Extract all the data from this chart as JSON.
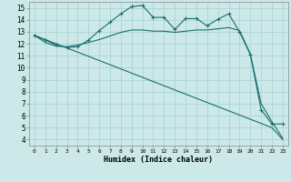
{
  "title": "",
  "xlabel": "Humidex (Indice chaleur)",
  "bg_color": "#cce8e8",
  "grid_color": "#aad4d4",
  "line_color": "#1a6e6e",
  "xlim": [
    -0.5,
    23.5
  ],
  "ylim": [
    3.5,
    15.5
  ],
  "xticks": [
    0,
    1,
    2,
    3,
    4,
    5,
    6,
    7,
    8,
    9,
    10,
    11,
    12,
    13,
    14,
    15,
    16,
    17,
    18,
    19,
    20,
    21,
    22,
    23
  ],
  "yticks": [
    4,
    5,
    6,
    7,
    8,
    9,
    10,
    11,
    12,
    13,
    14,
    15
  ],
  "series1_x": [
    0,
    1,
    2,
    3,
    4,
    5,
    6,
    7,
    8,
    9,
    10,
    11,
    12,
    13,
    14,
    15,
    16,
    17,
    18,
    19,
    20,
    21,
    22,
    23
  ],
  "series1_y": [
    12.7,
    12.3,
    11.9,
    11.7,
    11.75,
    12.3,
    13.1,
    13.8,
    14.5,
    15.1,
    15.2,
    14.2,
    14.2,
    13.2,
    14.1,
    14.1,
    13.5,
    14.05,
    14.5,
    13.0,
    11.1,
    6.5,
    5.3,
    5.3
  ],
  "series2_x": [
    0,
    1,
    2,
    3,
    4,
    5,
    6,
    7,
    8,
    9,
    10,
    11,
    12,
    13,
    14,
    15,
    16,
    17,
    18,
    19,
    20,
    21,
    22,
    23
  ],
  "series2_y": [
    12.7,
    12.1,
    11.8,
    11.75,
    11.9,
    12.1,
    12.35,
    12.65,
    12.95,
    13.15,
    13.15,
    13.05,
    13.05,
    12.95,
    13.05,
    13.15,
    13.15,
    13.25,
    13.35,
    13.1,
    11.15,
    7.0,
    5.5,
    4.1
  ],
  "series3_x": [
    0,
    1,
    2,
    3,
    4,
    5,
    6,
    7,
    8,
    9,
    10,
    11,
    12,
    13,
    14,
    15,
    16,
    17,
    18,
    19,
    20,
    21,
    22,
    23
  ],
  "series3_y": [
    12.7,
    12.35,
    12.0,
    11.65,
    11.3,
    10.95,
    10.6,
    10.25,
    9.9,
    9.55,
    9.2,
    8.85,
    8.5,
    8.15,
    7.8,
    7.45,
    7.1,
    6.75,
    6.4,
    6.05,
    5.7,
    5.35,
    5.0,
    4.0
  ]
}
